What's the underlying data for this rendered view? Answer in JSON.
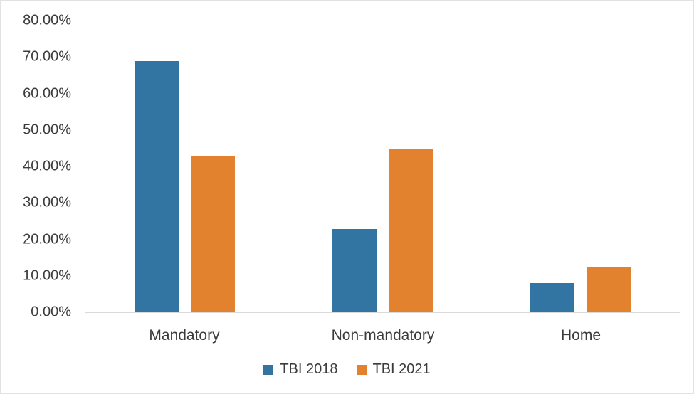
{
  "chart_data": {
    "type": "bar",
    "title": "",
    "xlabel": "",
    "ylabel": "",
    "categories": [
      "Mandatory",
      "Non-mandatory",
      "Home"
    ],
    "series": [
      {
        "name": "TBI 2018",
        "color": "#3274A2",
        "values": [
          68.9,
          22.8,
          8.0
        ]
      },
      {
        "name": "TBI 2021",
        "color": "#E2822E",
        "values": [
          43.0,
          44.8,
          12.4
        ]
      }
    ],
    "ylim": [
      0,
      80
    ],
    "ytick_step": 10,
    "ytick_labels": [
      "0.00%",
      "10.00%",
      "20.00%",
      "30.00%",
      "40.00%",
      "50.00%",
      "60.00%",
      "70.00%",
      "80.00%"
    ],
    "grid": false,
    "legend_position": "bottom",
    "axis_line_color": "#d9d9d9",
    "text_color": "#3b3b3b"
  }
}
